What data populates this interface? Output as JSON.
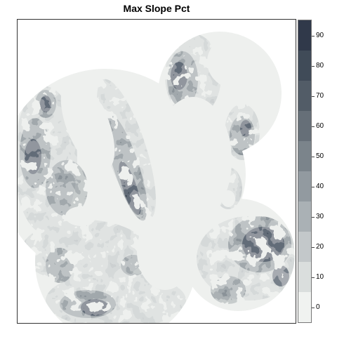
{
  "title": "Max Slope Pct",
  "chart_data": {
    "type": "heatmap",
    "title": "Max Slope Pct",
    "xlabel": "",
    "ylabel": "",
    "legend": {
      "placement": "right",
      "breaks": [
        -5,
        5,
        15,
        25,
        35,
        45,
        55,
        65,
        75,
        85,
        95
      ],
      "tick_values": [
        0,
        10,
        20,
        30,
        40,
        50,
        60,
        70,
        80,
        90
      ],
      "colors": [
        "#f0f2f0",
        "#dadedd",
        "#c3c8ca",
        "#aab1b5",
        "#929aa0",
        "#7b848b",
        "#666f78",
        "#525c67",
        "#404b58",
        "#30394a"
      ]
    },
    "base_color": "#f0f2f0"
  }
}
